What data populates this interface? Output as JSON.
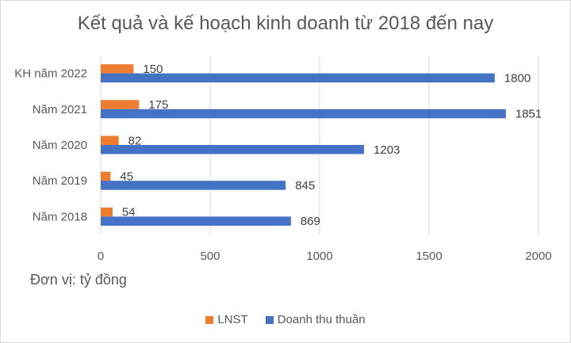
{
  "chart_data": {
    "type": "bar",
    "orientation": "horizontal",
    "title": "Kết quả và kế hoạch kinh doanh từ 2018 đến nay",
    "unit_note": "Đơn vị: tỷ đồng",
    "categories": [
      "Năm 2018",
      "Năm 2019",
      "Năm 2020",
      "Năm 2021",
      "KH năm 2022"
    ],
    "series": [
      {
        "name": "LNST",
        "color": "#ED7D31",
        "values": [
          54,
          45,
          82,
          175,
          150
        ]
      },
      {
        "name": "Doanh thu thuần",
        "color": "#4472C4",
        "values": [
          869,
          845,
          1203,
          1851,
          1800
        ]
      }
    ],
    "xlim": [
      0,
      2000
    ],
    "xticks": [
      0,
      500,
      1000,
      1500,
      2000
    ],
    "grid": true,
    "legend": "bottom"
  }
}
